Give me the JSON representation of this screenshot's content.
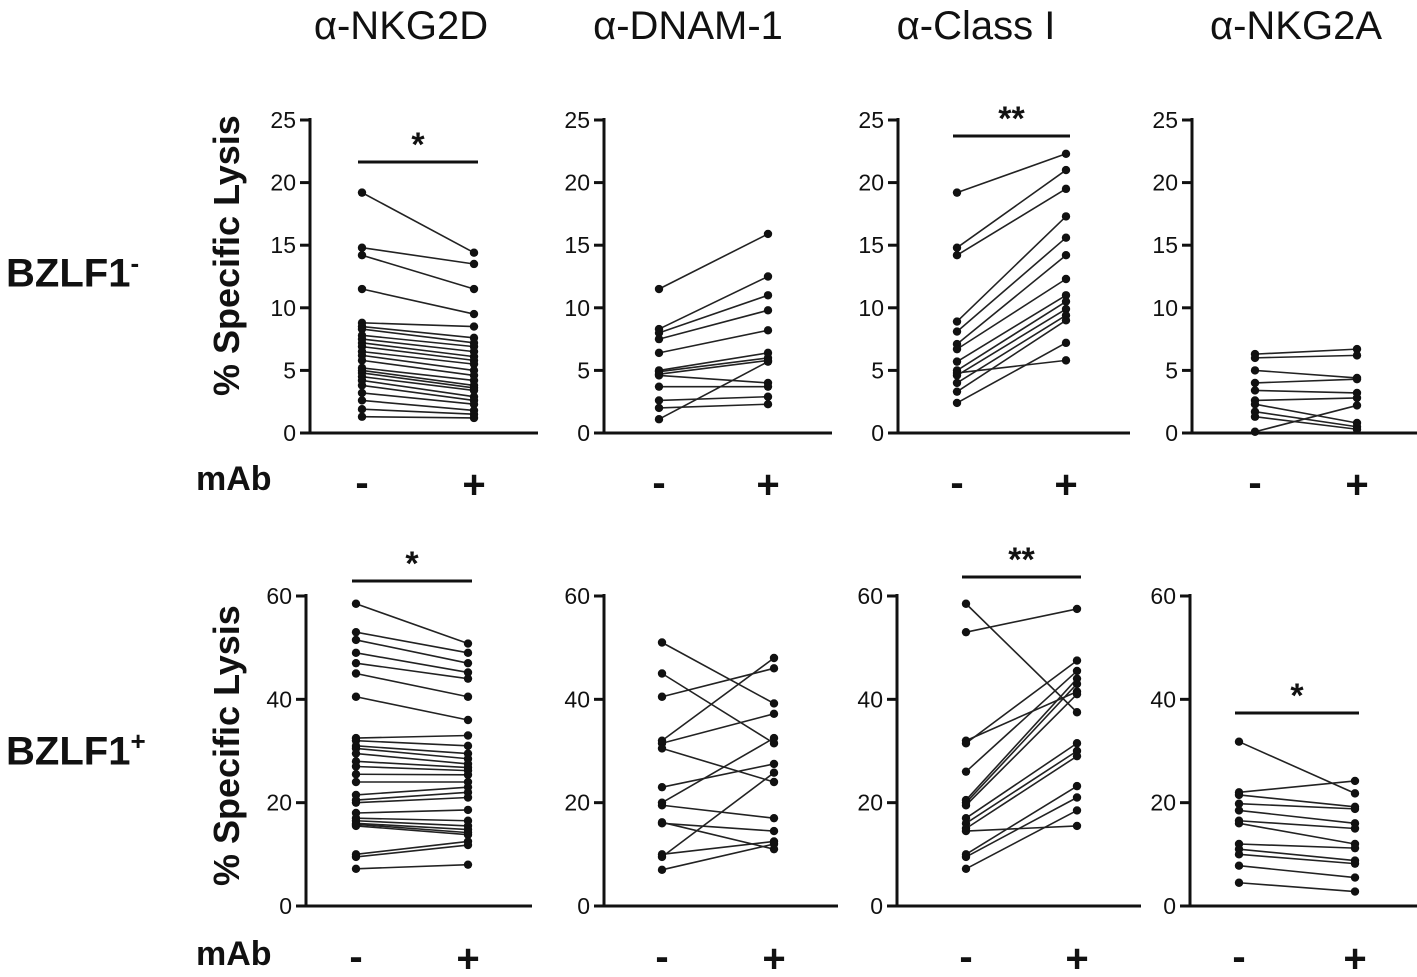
{
  "column_titles": [
    "α-NKG2D",
    "α-DNAM-1",
    "α-Class I",
    "α-NKG2A"
  ],
  "row_labels": [
    {
      "name": "BZLF1",
      "sup": "-"
    },
    {
      "name": "BZLF1",
      "sup": "+"
    }
  ],
  "y_axis_label": "% Specific Lysis",
  "mab_label": "mAb",
  "condition_labels": [
    "-",
    "+"
  ],
  "chart_data": [
    {
      "type": "line",
      "title": "α-NKG2D",
      "row": "BZLF1-",
      "ylim": [
        0,
        25
      ],
      "yticks": [
        0,
        5,
        10,
        15,
        20,
        25
      ],
      "significance": "*",
      "pairs": [
        [
          19.2,
          14.4
        ],
        [
          14.8,
          13.5
        ],
        [
          14.2,
          11.5
        ],
        [
          11.5,
          9.5
        ],
        [
          8.8,
          8.5
        ],
        [
          8.5,
          7.6
        ],
        [
          8.3,
          7.2
        ],
        [
          7.8,
          6.9
        ],
        [
          7.5,
          6.5
        ],
        [
          7.2,
          6.1
        ],
        [
          6.9,
          5.8
        ],
        [
          6.5,
          5.5
        ],
        [
          6.2,
          5.0
        ],
        [
          5.8,
          4.6
        ],
        [
          5.2,
          4.2
        ],
        [
          5.0,
          3.8
        ],
        [
          4.8,
          3.6
        ],
        [
          4.5,
          3.4
        ],
        [
          4.2,
          2.9
        ],
        [
          3.8,
          2.6
        ],
        [
          3.2,
          2.3
        ],
        [
          2.6,
          1.8
        ],
        [
          1.9,
          1.5
        ],
        [
          1.3,
          1.2
        ]
      ]
    },
    {
      "type": "line",
      "title": "α-DNAM-1",
      "row": "BZLF1-",
      "ylim": [
        0,
        25
      ],
      "yticks": [
        0,
        5,
        10,
        15,
        20,
        25
      ],
      "pairs": [
        [
          11.5,
          15.9
        ],
        [
          8.3,
          12.5
        ],
        [
          8.0,
          11.0
        ],
        [
          7.5,
          9.8
        ],
        [
          6.4,
          8.2
        ],
        [
          5.0,
          6.4
        ],
        [
          4.9,
          6.0
        ],
        [
          4.7,
          5.8
        ],
        [
          4.6,
          4.0
        ],
        [
          3.7,
          3.7
        ],
        [
          2.6,
          2.9
        ],
        [
          2.0,
          2.3
        ],
        [
          1.1,
          5.7
        ]
      ]
    },
    {
      "type": "line",
      "title": "α-Class I",
      "row": "BZLF1-",
      "ylim": [
        0,
        25
      ],
      "yticks": [
        0,
        5,
        10,
        15,
        20,
        25
      ],
      "significance": "**",
      "pairs": [
        [
          19.2,
          22.3
        ],
        [
          14.8,
          21.0
        ],
        [
          14.2,
          19.5
        ],
        [
          8.9,
          17.3
        ],
        [
          8.1,
          15.6
        ],
        [
          7.1,
          14.2
        ],
        [
          6.7,
          12.3
        ],
        [
          5.7,
          11.0
        ],
        [
          5.0,
          10.5
        ],
        [
          4.6,
          9.9
        ],
        [
          4.0,
          9.4
        ],
        [
          3.3,
          9.0
        ],
        [
          2.4,
          7.2
        ],
        [
          4.8,
          5.8
        ]
      ]
    },
    {
      "type": "line",
      "title": "α-NKG2A",
      "row": "BZLF1-",
      "ylim": [
        0,
        25
      ],
      "yticks": [
        0,
        5,
        10,
        15,
        20,
        25
      ],
      "pairs": [
        [
          6.3,
          6.7
        ],
        [
          6.0,
          6.2
        ],
        [
          5.0,
          4.4
        ],
        [
          4.0,
          4.3
        ],
        [
          3.4,
          3.2
        ],
        [
          2.6,
          2.8
        ],
        [
          2.3,
          0.8
        ],
        [
          1.7,
          0.5
        ],
        [
          1.3,
          0.3
        ],
        [
          0.1,
          2.2
        ]
      ]
    },
    {
      "type": "line",
      "title": "α-NKG2D",
      "row": "BZLF1+",
      "ylim": [
        0,
        60
      ],
      "yticks": [
        0,
        20,
        40,
        60
      ],
      "significance": "*",
      "pairs": [
        [
          58.5,
          50.8
        ],
        [
          53.0,
          49.0
        ],
        [
          51.5,
          47.0
        ],
        [
          49.0,
          45.2
        ],
        [
          47.0,
          44.0
        ],
        [
          45.0,
          40.5
        ],
        [
          40.5,
          36.0
        ],
        [
          32.5,
          33.0
        ],
        [
          32.0,
          31.0
        ],
        [
          31.0,
          29.5
        ],
        [
          30.5,
          28.5
        ],
        [
          29.5,
          27.5
        ],
        [
          28.0,
          26.8
        ],
        [
          27.0,
          26.2
        ],
        [
          25.5,
          25.4
        ],
        [
          24.0,
          24.0
        ],
        [
          21.5,
          23.0
        ],
        [
          20.5,
          22.0
        ],
        [
          20.0,
          21.0
        ],
        [
          18.0,
          18.6
        ],
        [
          17.0,
          16.5
        ],
        [
          16.5,
          15.5
        ],
        [
          16.0,
          14.8
        ],
        [
          15.8,
          14.2
        ],
        [
          15.5,
          13.8
        ],
        [
          10.0,
          12.5
        ],
        [
          9.5,
          11.8
        ],
        [
          7.2,
          8.0
        ]
      ]
    },
    {
      "type": "line",
      "title": "α-DNAM-1",
      "row": "BZLF1+",
      "ylim": [
        0,
        60
      ],
      "yticks": [
        0,
        20,
        40,
        60
      ],
      "pairs": [
        [
          51.0,
          39.2
        ],
        [
          45.0,
          31.5
        ],
        [
          40.5,
          46.0
        ],
        [
          32.0,
          48.0
        ],
        [
          31.5,
          37.2
        ],
        [
          30.5,
          24.0
        ],
        [
          23.0,
          27.5
        ],
        [
          20.0,
          32.5
        ],
        [
          19.5,
          17.0
        ],
        [
          16.2,
          11.0
        ],
        [
          16.0,
          14.5
        ],
        [
          10.0,
          12.5
        ],
        [
          9.5,
          25.8
        ],
        [
          7.0,
          12.0
        ]
      ]
    },
    {
      "type": "line",
      "title": "α-Class I",
      "row": "BZLF1+",
      "ylim": [
        0,
        60
      ],
      "yticks": [
        0,
        20,
        40,
        60
      ],
      "significance": "**",
      "pairs": [
        [
          58.5,
          37.5
        ],
        [
          53.0,
          57.5
        ],
        [
          32.0,
          41.5
        ],
        [
          31.5,
          47.5
        ],
        [
          26.0,
          45.5
        ],
        [
          20.5,
          44.0
        ],
        [
          20.0,
          43.0
        ],
        [
          19.5,
          41.0
        ],
        [
          17.0,
          31.5
        ],
        [
          16.0,
          30.0
        ],
        [
          15.0,
          29.0
        ],
        [
          10.0,
          23.2
        ],
        [
          9.5,
          21.0
        ],
        [
          7.2,
          18.5
        ],
        [
          14.5,
          15.5
        ]
      ]
    },
    {
      "type": "line",
      "title": "α-NKG2A",
      "row": "BZLF1+",
      "ylim": [
        0,
        60
      ],
      "yticks": [
        0,
        20,
        40,
        60
      ],
      "significance": "*",
      "pairs": [
        [
          31.8,
          21.8
        ],
        [
          22.0,
          24.2
        ],
        [
          21.5,
          19.2
        ],
        [
          19.8,
          18.8
        ],
        [
          18.5,
          16.0
        ],
        [
          16.5,
          15.0
        ],
        [
          16.0,
          12.0
        ],
        [
          12.0,
          11.2
        ],
        [
          11.0,
          8.8
        ],
        [
          10.0,
          8.2
        ],
        [
          7.8,
          5.5
        ],
        [
          4.5,
          2.8
        ]
      ]
    }
  ]
}
